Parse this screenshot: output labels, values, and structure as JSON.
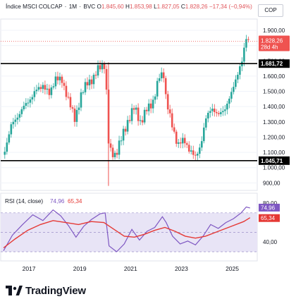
{
  "header": {
    "symbol": "Índice MSCI COLCAP",
    "interval": "1M",
    "exchange": "BVC",
    "open_label": "O",
    "open": "1.845,60",
    "high_label": "H",
    "high": "1.853,98",
    "low_label": "L",
    "low": "1.827,05",
    "close_label": "C",
    "close": "1.828,26",
    "change": "−17,34",
    "change_pct": "(−0,94%)"
  },
  "currency": "COP",
  "price_badge": {
    "value": "1.828,26",
    "countdown": "28d 4h"
  },
  "colors": {
    "up": "#26a69a",
    "down": "#ef5350",
    "rsi": "#7e57c2",
    "rsi_ma": "#e53935",
    "band": "#e8e4f6"
  },
  "chart_data": [
    {
      "type": "candlestick",
      "title": "Índice MSCI COLCAP · 1M · BVC",
      "y_ticks": [
        900,
        1000,
        1100,
        1200,
        1300,
        1400,
        1500,
        1600,
        1700,
        1800,
        1900
      ],
      "y_tick_labels": [
        "900,00",
        "1.000,00",
        "1.100,00",
        "1.200,00",
        "1.300,00",
        "1.400,00",
        "1.500,00",
        "1.600,00",
        "1.700,00",
        "1.800,00",
        "1.900,00"
      ],
      "ylim": [
        860,
        1960
      ],
      "x_labels": [
        "2017",
        "2019",
        "2021",
        "2023",
        "2025"
      ],
      "x_label_years": [
        2017,
        2019,
        2021,
        2023,
        2025
      ],
      "xlim": [
        2016.05,
        2025.95
      ],
      "horizontal_lines": [
        {
          "value": 1681.72,
          "label": "1.681,72"
        },
        {
          "value": 1045.71,
          "label": "1.045,71"
        }
      ],
      "current_price": 1828.26,
      "points": [
        [
          2016.1,
          1120
        ],
        [
          2016.35,
          1270
        ],
        [
          2016.6,
          1340
        ],
        [
          2016.85,
          1395
        ],
        [
          2017.1,
          1455
        ],
        [
          2017.35,
          1505
        ],
        [
          2017.6,
          1545
        ],
        [
          2017.85,
          1475
        ],
        [
          2018.1,
          1595
        ],
        [
          2018.35,
          1560
        ],
        [
          2018.6,
          1455
        ],
        [
          2018.85,
          1310
        ],
        [
          2019.1,
          1480
        ],
        [
          2019.35,
          1555
        ],
        [
          2019.6,
          1590
        ],
        [
          2019.85,
          1665
        ],
        [
          2020.05,
          1680
        ],
        [
          2020.2,
          1105
        ],
        [
          2020.45,
          1085
        ],
        [
          2020.7,
          1195
        ],
        [
          2020.95,
          1310
        ],
        [
          2021.2,
          1395
        ],
        [
          2021.45,
          1295
        ],
        [
          2021.7,
          1385
        ],
        [
          2021.95,
          1440
        ],
        [
          2022.2,
          1605
        ],
        [
          2022.35,
          1615
        ],
        [
          2022.45,
          1445
        ],
        [
          2022.65,
          1290
        ],
        [
          2022.9,
          1155
        ],
        [
          2023.15,
          1175
        ],
        [
          2023.4,
          1115
        ],
        [
          2023.6,
          1060
        ],
        [
          2023.8,
          1150
        ],
        [
          2024.0,
          1310
        ],
        [
          2024.25,
          1400
        ],
        [
          2024.5,
          1335
        ],
        [
          2024.75,
          1390
        ],
        [
          2025.0,
          1470
        ],
        [
          2025.25,
          1620
        ],
        [
          2025.45,
          1700
        ],
        [
          2025.6,
          1850
        ],
        [
          2025.75,
          1828
        ]
      ]
    },
    {
      "type": "line",
      "title": "RSI (14, close)",
      "series": [
        {
          "name": "RSI",
          "latest": "74,96",
          "points": [
            [
              2016.05,
              31
            ],
            [
              2016.4,
              47
            ],
            [
              2016.8,
              58
            ],
            [
              2017.2,
              68
            ],
            [
              2017.6,
              62
            ],
            [
              2018.0,
              73
            ],
            [
              2018.3,
              67
            ],
            [
              2018.6,
              57
            ],
            [
              2018.9,
              45
            ],
            [
              2019.2,
              56
            ],
            [
              2019.5,
              63
            ],
            [
              2019.85,
              69
            ],
            [
              2020.05,
              70
            ],
            [
              2020.2,
              36
            ],
            [
              2020.5,
              30
            ],
            [
              2020.8,
              38
            ],
            [
              2021.1,
              53
            ],
            [
              2021.4,
              42
            ],
            [
              2021.7,
              51
            ],
            [
              2022.0,
              55
            ],
            [
              2022.3,
              66
            ],
            [
              2022.45,
              60
            ],
            [
              2022.7,
              46
            ],
            [
              2023.0,
              38
            ],
            [
              2023.3,
              41
            ],
            [
              2023.6,
              37
            ],
            [
              2023.9,
              46
            ],
            [
              2024.2,
              58
            ],
            [
              2024.5,
              54
            ],
            [
              2024.8,
              60
            ],
            [
              2025.1,
              64
            ],
            [
              2025.4,
              70
            ],
            [
              2025.6,
              76
            ],
            [
              2025.75,
              75
            ]
          ]
        },
        {
          "name": "MA",
          "latest": "65,34",
          "points": [
            [
              2016.05,
              34
            ],
            [
              2016.5,
              43
            ],
            [
              2017.0,
              52
            ],
            [
              2017.5,
              58
            ],
            [
              2018.0,
              62
            ],
            [
              2018.5,
              60
            ],
            [
              2019.0,
              58
            ],
            [
              2019.5,
              61
            ],
            [
              2020.0,
              60
            ],
            [
              2020.4,
              53
            ],
            [
              2020.8,
              46
            ],
            [
              2021.2,
              45
            ],
            [
              2021.6,
              48
            ],
            [
              2022.0,
              52
            ],
            [
              2022.4,
              55
            ],
            [
              2022.8,
              51
            ],
            [
              2023.2,
              46
            ],
            [
              2023.6,
              44
            ],
            [
              2024.0,
              46
            ],
            [
              2024.5,
              51
            ],
            [
              2025.0,
              56
            ],
            [
              2025.5,
              61
            ],
            [
              2025.75,
              65
            ]
          ]
        }
      ],
      "y_ticks": [
        40,
        80
      ],
      "y_tick_labels": [
        "40,00",
        "80,00"
      ],
      "band": [
        30,
        70
      ],
      "ylim": [
        22,
        88
      ]
    }
  ],
  "logo": {
    "text": "TradingView"
  }
}
